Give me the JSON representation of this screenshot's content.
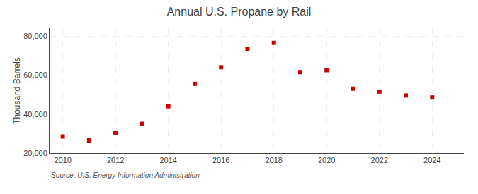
{
  "chart_data": {
    "type": "scatter",
    "title": "Annual U.S. Propane by Rail",
    "ylabel": "Thousand Barrels",
    "annotations": [
      "Source: U.S. Energy Information Administration"
    ],
    "x": [
      2010,
      2011,
      2012,
      2013,
      2014,
      2015,
      2016,
      2017,
      2018,
      2019,
      2020,
      2021,
      2022,
      2023,
      2024
    ],
    "values": [
      28500,
      26500,
      30500,
      35000,
      44000,
      55500,
      64000,
      73500,
      76500,
      61500,
      62500,
      53000,
      51500,
      49500,
      48500
    ],
    "color": "#cc0000",
    "marker": "square",
    "xlim": [
      2009.5,
      2025.2
    ],
    "xticks": [
      2010,
      2012,
      2014,
      2016,
      2018,
      2020,
      2022,
      2024
    ],
    "ylim": [
      20000,
      84000
    ],
    "yticks": [
      {
        "value": 20000,
        "label": "20,000"
      },
      {
        "value": 40000,
        "label": "40,000"
      },
      {
        "value": 60000,
        "label": "60,000"
      },
      {
        "value": 80000,
        "label": "80,000"
      }
    ],
    "grid": true
  }
}
